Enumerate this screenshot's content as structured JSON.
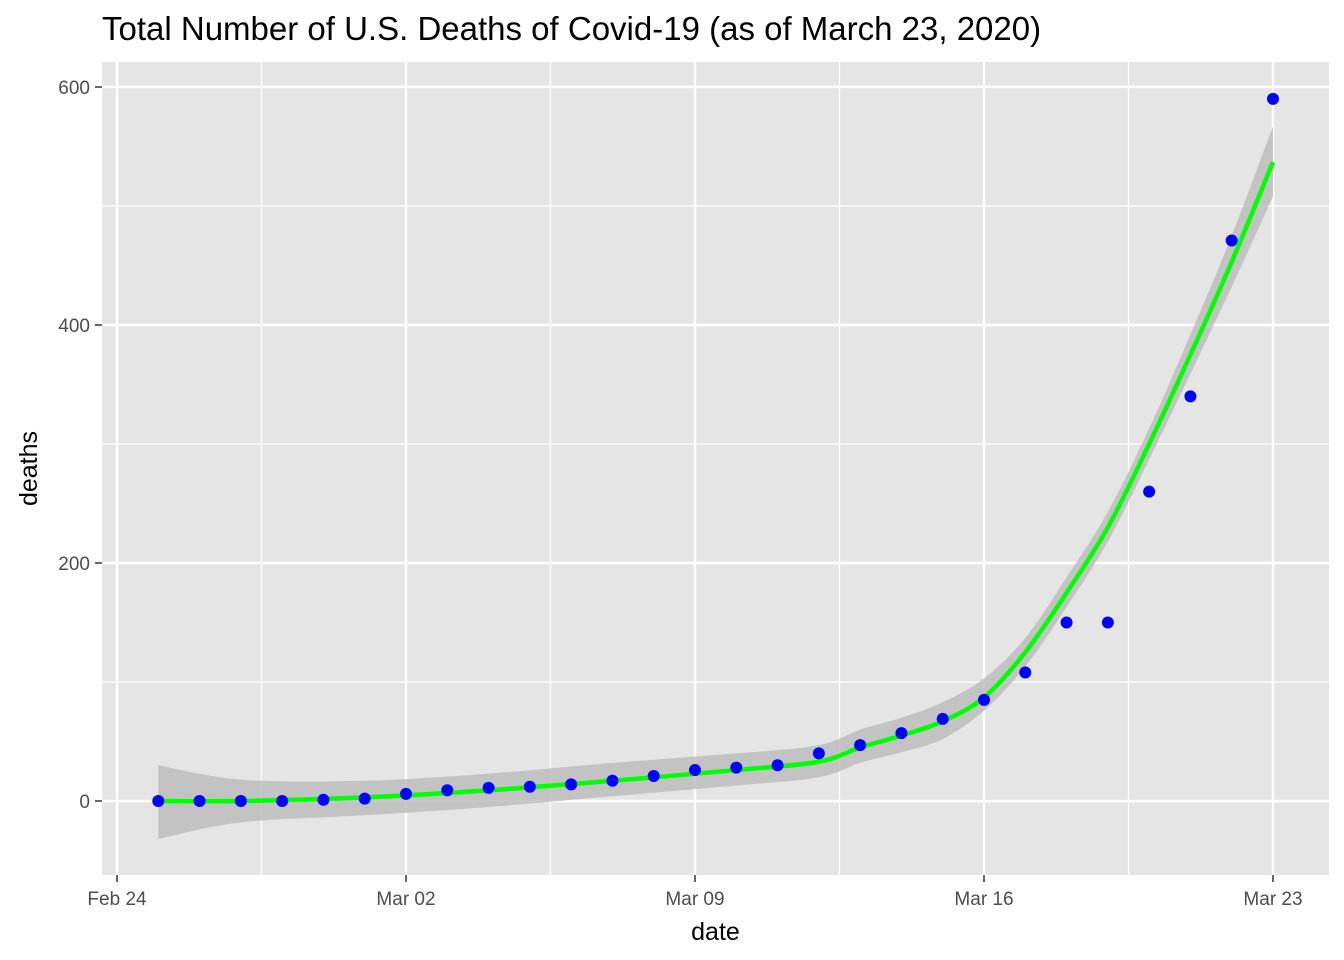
{
  "chart_data": {
    "type": "scatter",
    "title": "Total Number of U.S. Deaths of Covid-19 (as of March 23, 2020)",
    "xlabel": "date",
    "ylabel": "deaths",
    "x_ticks": [
      {
        "date": "2020-02-24",
        "label": "Feb 24"
      },
      {
        "date": "2020-03-02",
        "label": "Mar 02"
      },
      {
        "date": "2020-03-09",
        "label": "Mar 09"
      },
      {
        "date": "2020-03-16",
        "label": "Mar 16"
      },
      {
        "date": "2020-03-23",
        "label": "Mar 23"
      }
    ],
    "xlim": [
      "2020-02-24",
      "2020-03-24"
    ],
    "y_ticks": [
      0,
      200,
      400,
      600
    ],
    "ylim": [
      -62,
      622
    ],
    "grid": true,
    "colors": {
      "panel": "#e5e5e5",
      "grid": "#ffffff",
      "points": "#0000ff",
      "smooth": "#00ff00",
      "ribbon": "#bdbdbd"
    },
    "points": [
      {
        "x": "2020-02-25",
        "y": 0
      },
      {
        "x": "2020-02-26",
        "y": 0
      },
      {
        "x": "2020-02-27",
        "y": 0
      },
      {
        "x": "2020-02-28",
        "y": 0
      },
      {
        "x": "2020-02-29",
        "y": 1
      },
      {
        "x": "2020-03-01",
        "y": 2
      },
      {
        "x": "2020-03-02",
        "y": 6
      },
      {
        "x": "2020-03-03",
        "y": 9
      },
      {
        "x": "2020-03-04",
        "y": 11
      },
      {
        "x": "2020-03-05",
        "y": 12
      },
      {
        "x": "2020-03-06",
        "y": 14
      },
      {
        "x": "2020-03-07",
        "y": 17
      },
      {
        "x": "2020-03-08",
        "y": 21
      },
      {
        "x": "2020-03-09",
        "y": 26
      },
      {
        "x": "2020-03-10",
        "y": 28
      },
      {
        "x": "2020-03-11",
        "y": 30
      },
      {
        "x": "2020-03-12",
        "y": 40
      },
      {
        "x": "2020-03-13",
        "y": 47
      },
      {
        "x": "2020-03-14",
        "y": 57
      },
      {
        "x": "2020-03-15",
        "y": 69
      },
      {
        "x": "2020-03-16",
        "y": 85
      },
      {
        "x": "2020-03-17",
        "y": 108
      },
      {
        "x": "2020-03-18",
        "y": 150
      },
      {
        "x": "2020-03-19",
        "y": 150
      },
      {
        "x": "2020-03-20",
        "y": 260
      },
      {
        "x": "2020-03-21",
        "y": 340
      },
      {
        "x": "2020-03-22",
        "y": 471
      },
      {
        "x": "2020-03-23",
        "y": 590
      }
    ],
    "smooth": [
      {
        "x": "2020-02-25",
        "y": 0,
        "lo": -32,
        "hi": 30
      },
      {
        "x": "2020-02-27",
        "y": 0,
        "lo": -18,
        "hi": 18
      },
      {
        "x": "2020-03-01",
        "y": 3,
        "lo": -12,
        "hi": 17
      },
      {
        "x": "2020-03-04",
        "y": 9,
        "lo": -5,
        "hi": 23
      },
      {
        "x": "2020-03-07",
        "y": 17,
        "lo": 4,
        "hi": 32
      },
      {
        "x": "2020-03-10",
        "y": 26,
        "lo": 13,
        "hi": 40
      },
      {
        "x": "2020-03-12",
        "y": 33,
        "lo": 20,
        "hi": 47
      },
      {
        "x": "2020-03-13",
        "y": 45,
        "lo": 32,
        "hi": 60
      },
      {
        "x": "2020-03-14",
        "y": 55,
        "lo": 41,
        "hi": 70
      },
      {
        "x": "2020-03-15",
        "y": 67,
        "lo": 52,
        "hi": 83
      },
      {
        "x": "2020-03-16",
        "y": 87,
        "lo": 76,
        "hi": 103
      },
      {
        "x": "2020-03-17",
        "y": 125,
        "lo": 113,
        "hi": 137
      },
      {
        "x": "2020-03-18",
        "y": 175,
        "lo": 163,
        "hi": 188
      },
      {
        "x": "2020-03-19",
        "y": 230,
        "lo": 218,
        "hi": 243
      },
      {
        "x": "2020-03-20",
        "y": 300,
        "lo": 287,
        "hi": 313
      },
      {
        "x": "2020-03-21",
        "y": 375,
        "lo": 359,
        "hi": 392
      },
      {
        "x": "2020-03-22",
        "y": 453,
        "lo": 432,
        "hi": 475
      },
      {
        "x": "2020-03-23",
        "y": 537,
        "lo": 508,
        "hi": 567
      }
    ]
  }
}
